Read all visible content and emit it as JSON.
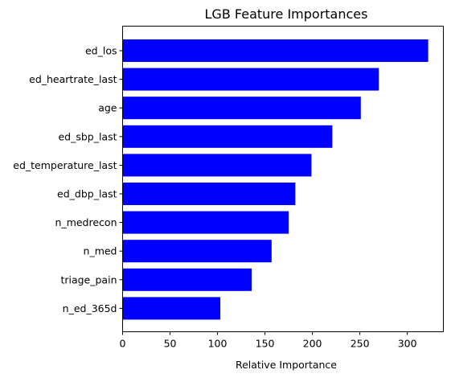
{
  "chart_data": {
    "type": "bar",
    "orientation": "horizontal",
    "title": "LGB Feature Importances",
    "xlabel": "Relative Importance",
    "ylabel": "",
    "categories": [
      "ed_los",
      "ed_heartrate_last",
      "age",
      "ed_sbp_last",
      "ed_temperature_last",
      "ed_dbp_last",
      "n_medrecon",
      "n_med",
      "triage_pain",
      "n_ed_365d"
    ],
    "values": [
      322,
      270,
      251,
      221,
      199,
      182,
      175,
      157,
      136,
      103
    ],
    "xlim": [
      0,
      338
    ],
    "xticks": [
      0,
      50,
      100,
      150,
      200,
      250,
      300
    ],
    "bar_color": "#0000ff",
    "grid": false,
    "legend": "none"
  }
}
